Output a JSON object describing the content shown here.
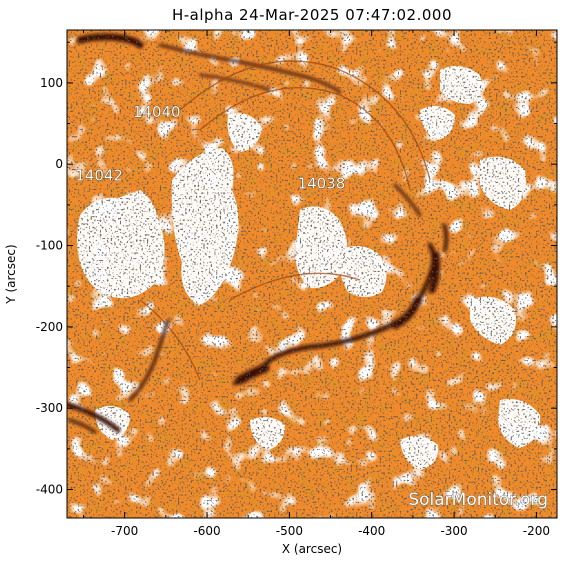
{
  "title": "H-alpha 24-Mar-2025 07:47:02.000",
  "xlabel": "X (arcsec)",
  "ylabel": "Y (arcsec)",
  "x_ticks": [
    "-700",
    "-600",
    "-500",
    "-400",
    "-300",
    "-200"
  ],
  "y_ticks": [
    "100",
    "0",
    "-100",
    "-200",
    "-300",
    "-400"
  ],
  "regions": [
    {
      "label": "14040",
      "x": -690,
      "y": 58
    },
    {
      "label": "14042",
      "x": -760,
      "y": -20
    },
    {
      "label": "14038",
      "x": -490,
      "y": -30
    }
  ],
  "watermark": "SolarMonitor.org",
  "colors": {
    "background_orange": "#f08a2a",
    "filament_dark": "#3a0a00",
    "plage_white": "#ffffff",
    "speckle_black": "#1a1a1a"
  },
  "axes": {
    "xlim": [
      -770,
      -175
    ],
    "ylim": [
      -435,
      165
    ]
  }
}
